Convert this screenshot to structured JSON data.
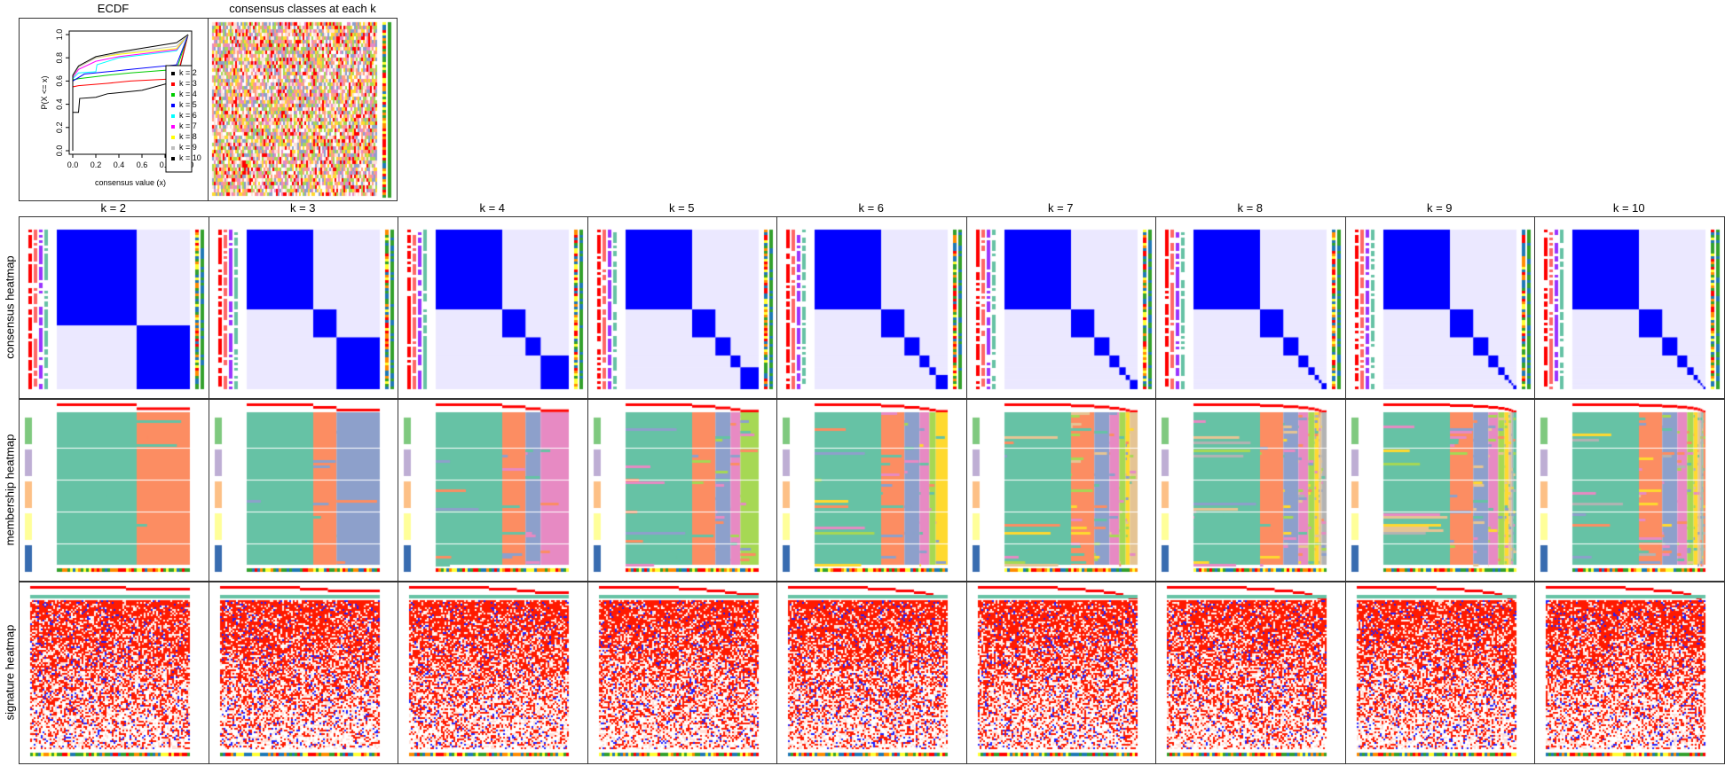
{
  "top": {
    "ecdf_title": "ECDF",
    "classes_title": "consensus classes at each k"
  },
  "row_labels": [
    "consensus heatmap",
    "membership heatmap",
    "signature heatmap"
  ],
  "k_titles": [
    "k = 2",
    "k = 3",
    "k = 4",
    "k = 5",
    "k = 6",
    "k = 7",
    "k = 8",
    "k = 9",
    "k = 10"
  ],
  "class_colors": [
    "#66C2A5",
    "#FC8D62",
    "#8DA0CB",
    "#E78AC3",
    "#A6D854",
    "#FFD92F",
    "#E5C494",
    "#B3B3B3",
    "#66C2A5",
    "#FC8D62"
  ],
  "chart_data": {
    "type": "line",
    "title": "ECDF",
    "xlabel": "consensus value (x)",
    "ylabel": "P(X <= x)",
    "xlim": [
      0,
      1
    ],
    "ylim": [
      0,
      1
    ],
    "xticks": [
      "0.0",
      "0.2",
      "0.4",
      "0.6",
      "0.8",
      "1.0"
    ],
    "yticks": [
      "0.0",
      "0.2",
      "0.4",
      "0.6",
      "0.8",
      "1.0"
    ],
    "legend_position": "right",
    "series": [
      {
        "name": "k = 2",
        "color": "#000000",
        "x": [
          0,
          0,
          0.05,
          0.06,
          0.2,
          0.3,
          0.6,
          0.9,
          1
        ],
        "y": [
          0,
          0.33,
          0.33,
          0.45,
          0.46,
          0.49,
          0.52,
          0.6,
          1
        ]
      },
      {
        "name": "k = 3",
        "color": "#FF0000",
        "x": [
          0,
          0,
          0.05,
          0.3,
          0.5,
          0.9,
          1
        ],
        "y": [
          0,
          0.55,
          0.56,
          0.58,
          0.6,
          0.62,
          1
        ]
      },
      {
        "name": "k = 4",
        "color": "#00CC00",
        "x": [
          0,
          0,
          0.05,
          0.3,
          0.5,
          0.9,
          1
        ],
        "y": [
          0,
          0.61,
          0.62,
          0.65,
          0.67,
          0.7,
          1
        ]
      },
      {
        "name": "k = 5",
        "color": "#0000FF",
        "x": [
          0,
          0,
          0.1,
          0.3,
          0.5,
          0.9,
          1
        ],
        "y": [
          0,
          0.6,
          0.66,
          0.68,
          0.7,
          0.74,
          1
        ]
      },
      {
        "name": "k = 6",
        "color": "#00FFFF",
        "x": [
          0,
          0,
          0.05,
          0.2,
          0.21,
          0.4,
          0.9,
          1
        ],
        "y": [
          0,
          0.62,
          0.67,
          0.68,
          0.74,
          0.8,
          0.86,
          1
        ]
      },
      {
        "name": "k = 7",
        "color": "#FF00FF",
        "x": [
          0,
          0,
          0.05,
          0.2,
          0.4,
          0.9,
          1
        ],
        "y": [
          0,
          0.63,
          0.7,
          0.77,
          0.81,
          0.87,
          1
        ]
      },
      {
        "name": "k = 8",
        "color": "#FFFF00",
        "x": [
          0,
          0,
          0.05,
          0.2,
          0.4,
          0.9,
          1
        ],
        "y": [
          0,
          0.64,
          0.72,
          0.8,
          0.83,
          0.88,
          1
        ]
      },
      {
        "name": "k = 9",
        "color": "#BEBEBE",
        "x": [
          0,
          0,
          0.05,
          0.2,
          0.4,
          0.9,
          1
        ],
        "y": [
          0,
          0.64,
          0.72,
          0.8,
          0.84,
          0.9,
          1
        ]
      },
      {
        "name": "k = 10",
        "color": "#000000",
        "x": [
          0,
          0,
          0.05,
          0.2,
          0.4,
          0.9,
          1
        ],
        "y": [
          0,
          0.65,
          0.73,
          0.81,
          0.85,
          0.93,
          1
        ]
      }
    ]
  }
}
